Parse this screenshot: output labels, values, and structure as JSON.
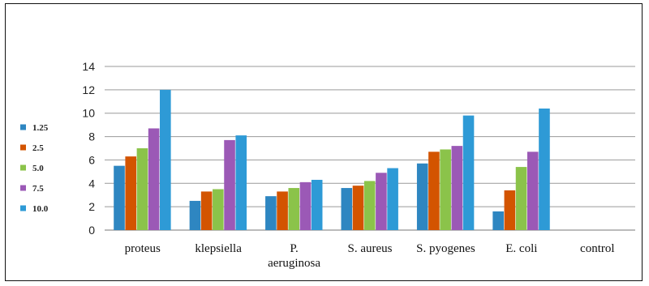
{
  "chart_data": {
    "type": "bar",
    "categories": [
      [
        "proteus"
      ],
      [
        "klepsiella"
      ],
      [
        "P.",
        "aeruginosa"
      ],
      [
        "S. aureus"
      ],
      [
        "S. pyogenes"
      ],
      [
        "E. coli"
      ],
      [
        "control"
      ]
    ],
    "series": [
      {
        "name": "1.25",
        "color": "#2E86C1",
        "values": [
          5.5,
          2.5,
          2.9,
          3.6,
          5.7,
          1.6,
          0
        ]
      },
      {
        "name": "2.5",
        "color": "#D35400",
        "values": [
          6.3,
          3.3,
          3.3,
          3.8,
          6.7,
          3.4,
          0
        ]
      },
      {
        "name": "5.0",
        "color": "#8BC34A",
        "values": [
          7.0,
          3.5,
          3.6,
          4.2,
          6.9,
          5.4,
          0
        ]
      },
      {
        "name": "7.5",
        "color": "#9B59B6",
        "values": [
          8.7,
          7.7,
          4.1,
          4.9,
          7.2,
          6.7,
          0
        ]
      },
      {
        "name": "10.0",
        "color": "#2E9AD6",
        "values": [
          12.0,
          8.1,
          4.3,
          5.3,
          9.8,
          10.4,
          0
        ]
      }
    ],
    "yticks": [
      0,
      2,
      4,
      6,
      8,
      10,
      12,
      14
    ],
    "ylim": [
      0,
      14
    ],
    "grid": true,
    "legend": "left"
  }
}
